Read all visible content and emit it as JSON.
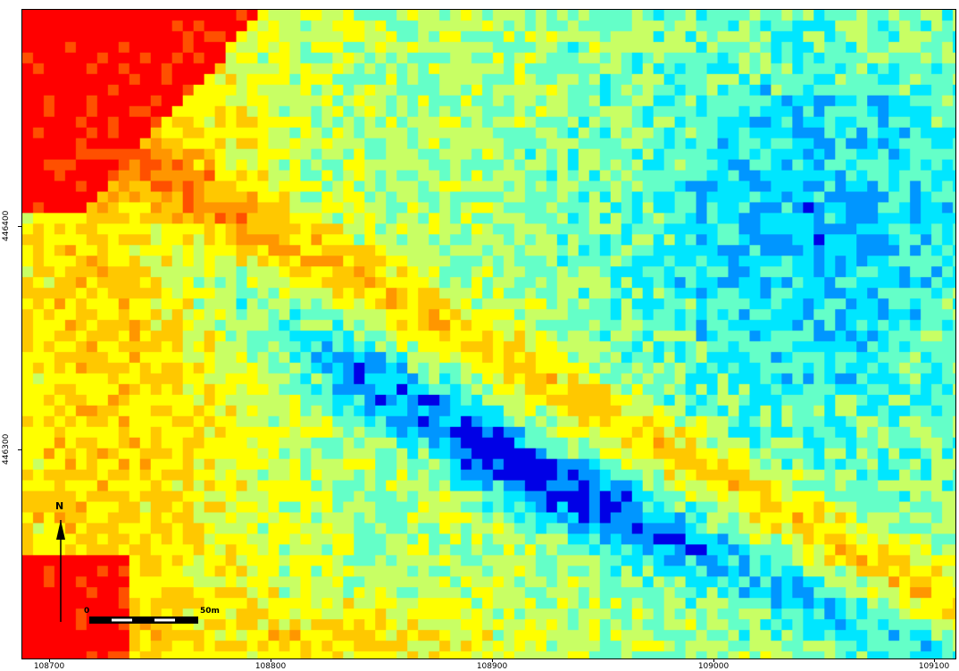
{
  "map": {
    "colormap": [
      "#0000e6",
      "#0096ff",
      "#00e6ff",
      "#64ffc8",
      "#c8ff64",
      "#ffff00",
      "#ffc800",
      "#ff9600",
      "#ff5000",
      "#ff0000"
    ],
    "x_ticks": [
      "108700",
      "108800",
      "108900",
      "109000",
      "109100"
    ],
    "y_ticks": [
      "446400",
      "446300"
    ],
    "x_range": [
      108693,
      109115
    ],
    "y_range": [
      446194,
      446493
    ]
  },
  "north_arrow": {
    "label": "N"
  },
  "scalebar": {
    "start_label": "0",
    "end_label": "50m"
  }
}
